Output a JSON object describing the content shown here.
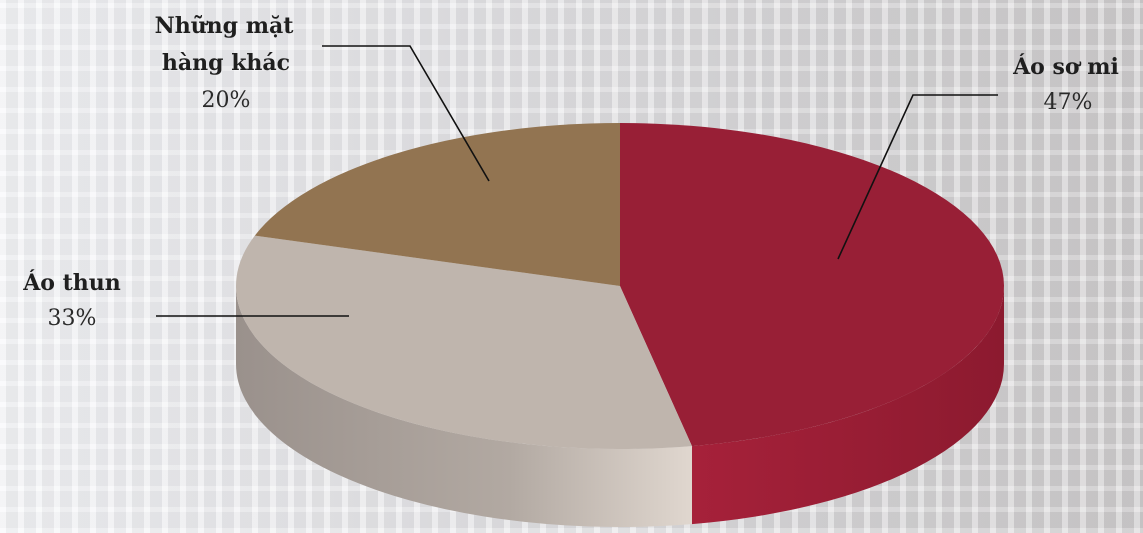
{
  "chart_data": {
    "type": "pie",
    "title": "",
    "slices": [
      {
        "label_line1": "Áo sơ mi",
        "label_line2": "",
        "percent_label": "47%",
        "value": 47,
        "color": "#981f36",
        "side_color": "#9c2033"
      },
      {
        "label_line1": "Áo thun",
        "label_line2": "",
        "percent_label": "33%",
        "value": 33,
        "color": "#bfb5ad",
        "side_color": "#a9a099"
      },
      {
        "label_line1": "Những mặt",
        "label_line2": "hàng khác",
        "percent_label": "20%",
        "value": 20,
        "color": "#927451",
        "side_color": "#7a6044"
      }
    ]
  }
}
